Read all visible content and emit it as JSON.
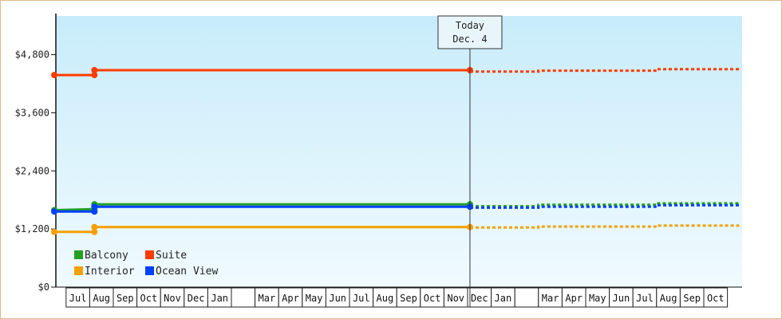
{
  "chart_data": {
    "type": "line",
    "title": "",
    "xlabel": "",
    "ylabel": "",
    "ylim": [
      0,
      5600
    ],
    "y_ticks": [
      {
        "value": 0,
        "label": "$0"
      },
      {
        "value": 1200,
        "label": "$1,200"
      },
      {
        "value": 2400,
        "label": "$2,400"
      },
      {
        "value": 3600,
        "label": "$3,600"
      },
      {
        "value": 4800,
        "label": "$4,800"
      }
    ],
    "x_axis": {
      "start": "Year 1 Jun 15",
      "end": "Year 3 Nov",
      "months": [
        {
          "label": "Jul",
          "start": 0.5,
          "end": 1.5
        },
        {
          "label": "Aug",
          "start": 1.5,
          "end": 2.5
        },
        {
          "label": "Sep",
          "start": 2.5,
          "end": 3.5
        },
        {
          "label": "Oct",
          "start": 3.5,
          "end": 4.5
        },
        {
          "label": "Nov",
          "start": 4.5,
          "end": 5.5
        },
        {
          "label": "Dec",
          "start": 5.5,
          "end": 6.5
        },
        {
          "label": "Jan",
          "start": 6.5,
          "end": 7.5
        },
        {
          "label": "",
          "start": 7.5,
          "end": 8.5
        },
        {
          "label": "Mar",
          "start": 8.5,
          "end": 9.5
        },
        {
          "label": "Apr",
          "start": 9.5,
          "end": 10.5
        },
        {
          "label": "May",
          "start": 10.5,
          "end": 11.5
        },
        {
          "label": "Jun",
          "start": 11.5,
          "end": 12.5
        },
        {
          "label": "Jul",
          "start": 12.5,
          "end": 13.5
        },
        {
          "label": "Aug",
          "start": 13.5,
          "end": 14.5
        },
        {
          "label": "Sep",
          "start": 14.5,
          "end": 15.5
        },
        {
          "label": "Oct",
          "start": 15.5,
          "end": 16.5
        },
        {
          "label": "Nov",
          "start": 16.5,
          "end": 17.5
        },
        {
          "label": "Dec",
          "start": 17.5,
          "end": 18.5
        },
        {
          "label": "Jan",
          "start": 18.5,
          "end": 19.5
        },
        {
          "label": "",
          "start": 19.5,
          "end": 20.5
        },
        {
          "label": "Mar",
          "start": 20.5,
          "end": 21.5
        },
        {
          "label": "Apr",
          "start": 21.5,
          "end": 22.5
        },
        {
          "label": "May",
          "start": 22.5,
          "end": 23.5
        },
        {
          "label": "Jun",
          "start": 23.5,
          "end": 24.5
        },
        {
          "label": "Jul",
          "start": 24.5,
          "end": 25.5
        },
        {
          "label": "Aug",
          "start": 25.5,
          "end": 26.5
        },
        {
          "label": "Sep",
          "start": 26.5,
          "end": 27.5
        },
        {
          "label": "Oct",
          "start": 27.5,
          "end": 28.5
        }
      ],
      "range": [
        0,
        29.0
      ]
    },
    "today_marker": {
      "x": 17.6,
      "line1": "Today",
      "line2": "Dec. 4"
    },
    "legend": {
      "placement": "bottom-left"
    },
    "series": [
      {
        "name": "Balcony",
        "color": "#22a022",
        "points": [
          [
            0,
            1590
          ],
          [
            1.7,
            1610
          ],
          [
            1.7,
            1710
          ],
          [
            17.6,
            1710
          ]
        ],
        "markers": [
          0,
          1.7,
          17.6
        ],
        "projection": [
          [
            17.6,
            1670
          ],
          [
            20.5,
            1670
          ],
          [
            20.5,
            1700
          ],
          [
            25.5,
            1700
          ],
          [
            25.5,
            1730
          ],
          [
            29.0,
            1730
          ]
        ]
      },
      {
        "name": "Suite",
        "color": "#ff3c00",
        "points": [
          [
            0,
            4380
          ],
          [
            1.7,
            4380
          ],
          [
            1.7,
            4480
          ],
          [
            17.6,
            4480
          ]
        ],
        "markers": [
          0,
          1.7,
          17.6
        ],
        "projection": [
          [
            17.6,
            4450
          ],
          [
            20.5,
            4450
          ],
          [
            20.5,
            4470
          ],
          [
            25.5,
            4470
          ],
          [
            25.5,
            4500
          ],
          [
            29.0,
            4500
          ]
        ]
      },
      {
        "name": "Interior",
        "color": "#f5a000",
        "points": [
          [
            0,
            1140
          ],
          [
            1.7,
            1140
          ],
          [
            1.7,
            1240
          ],
          [
            17.6,
            1240
          ]
        ],
        "markers": [
          0,
          1.7,
          17.6
        ],
        "projection": [
          [
            17.6,
            1230
          ],
          [
            20.5,
            1230
          ],
          [
            20.5,
            1250
          ],
          [
            25.5,
            1250
          ],
          [
            25.5,
            1270
          ],
          [
            29.0,
            1270
          ]
        ]
      },
      {
        "name": "Ocean View",
        "color": "#0040ff",
        "points": [
          [
            0,
            1560
          ],
          [
            1.7,
            1560
          ],
          [
            1.7,
            1660
          ],
          [
            17.6,
            1660
          ]
        ],
        "markers": [
          0,
          1.7,
          17.6
        ],
        "projection": [
          [
            17.6,
            1640
          ],
          [
            20.5,
            1640
          ],
          [
            20.5,
            1660
          ],
          [
            25.5,
            1660
          ],
          [
            25.5,
            1690
          ],
          [
            29.0,
            1690
          ]
        ]
      }
    ]
  }
}
